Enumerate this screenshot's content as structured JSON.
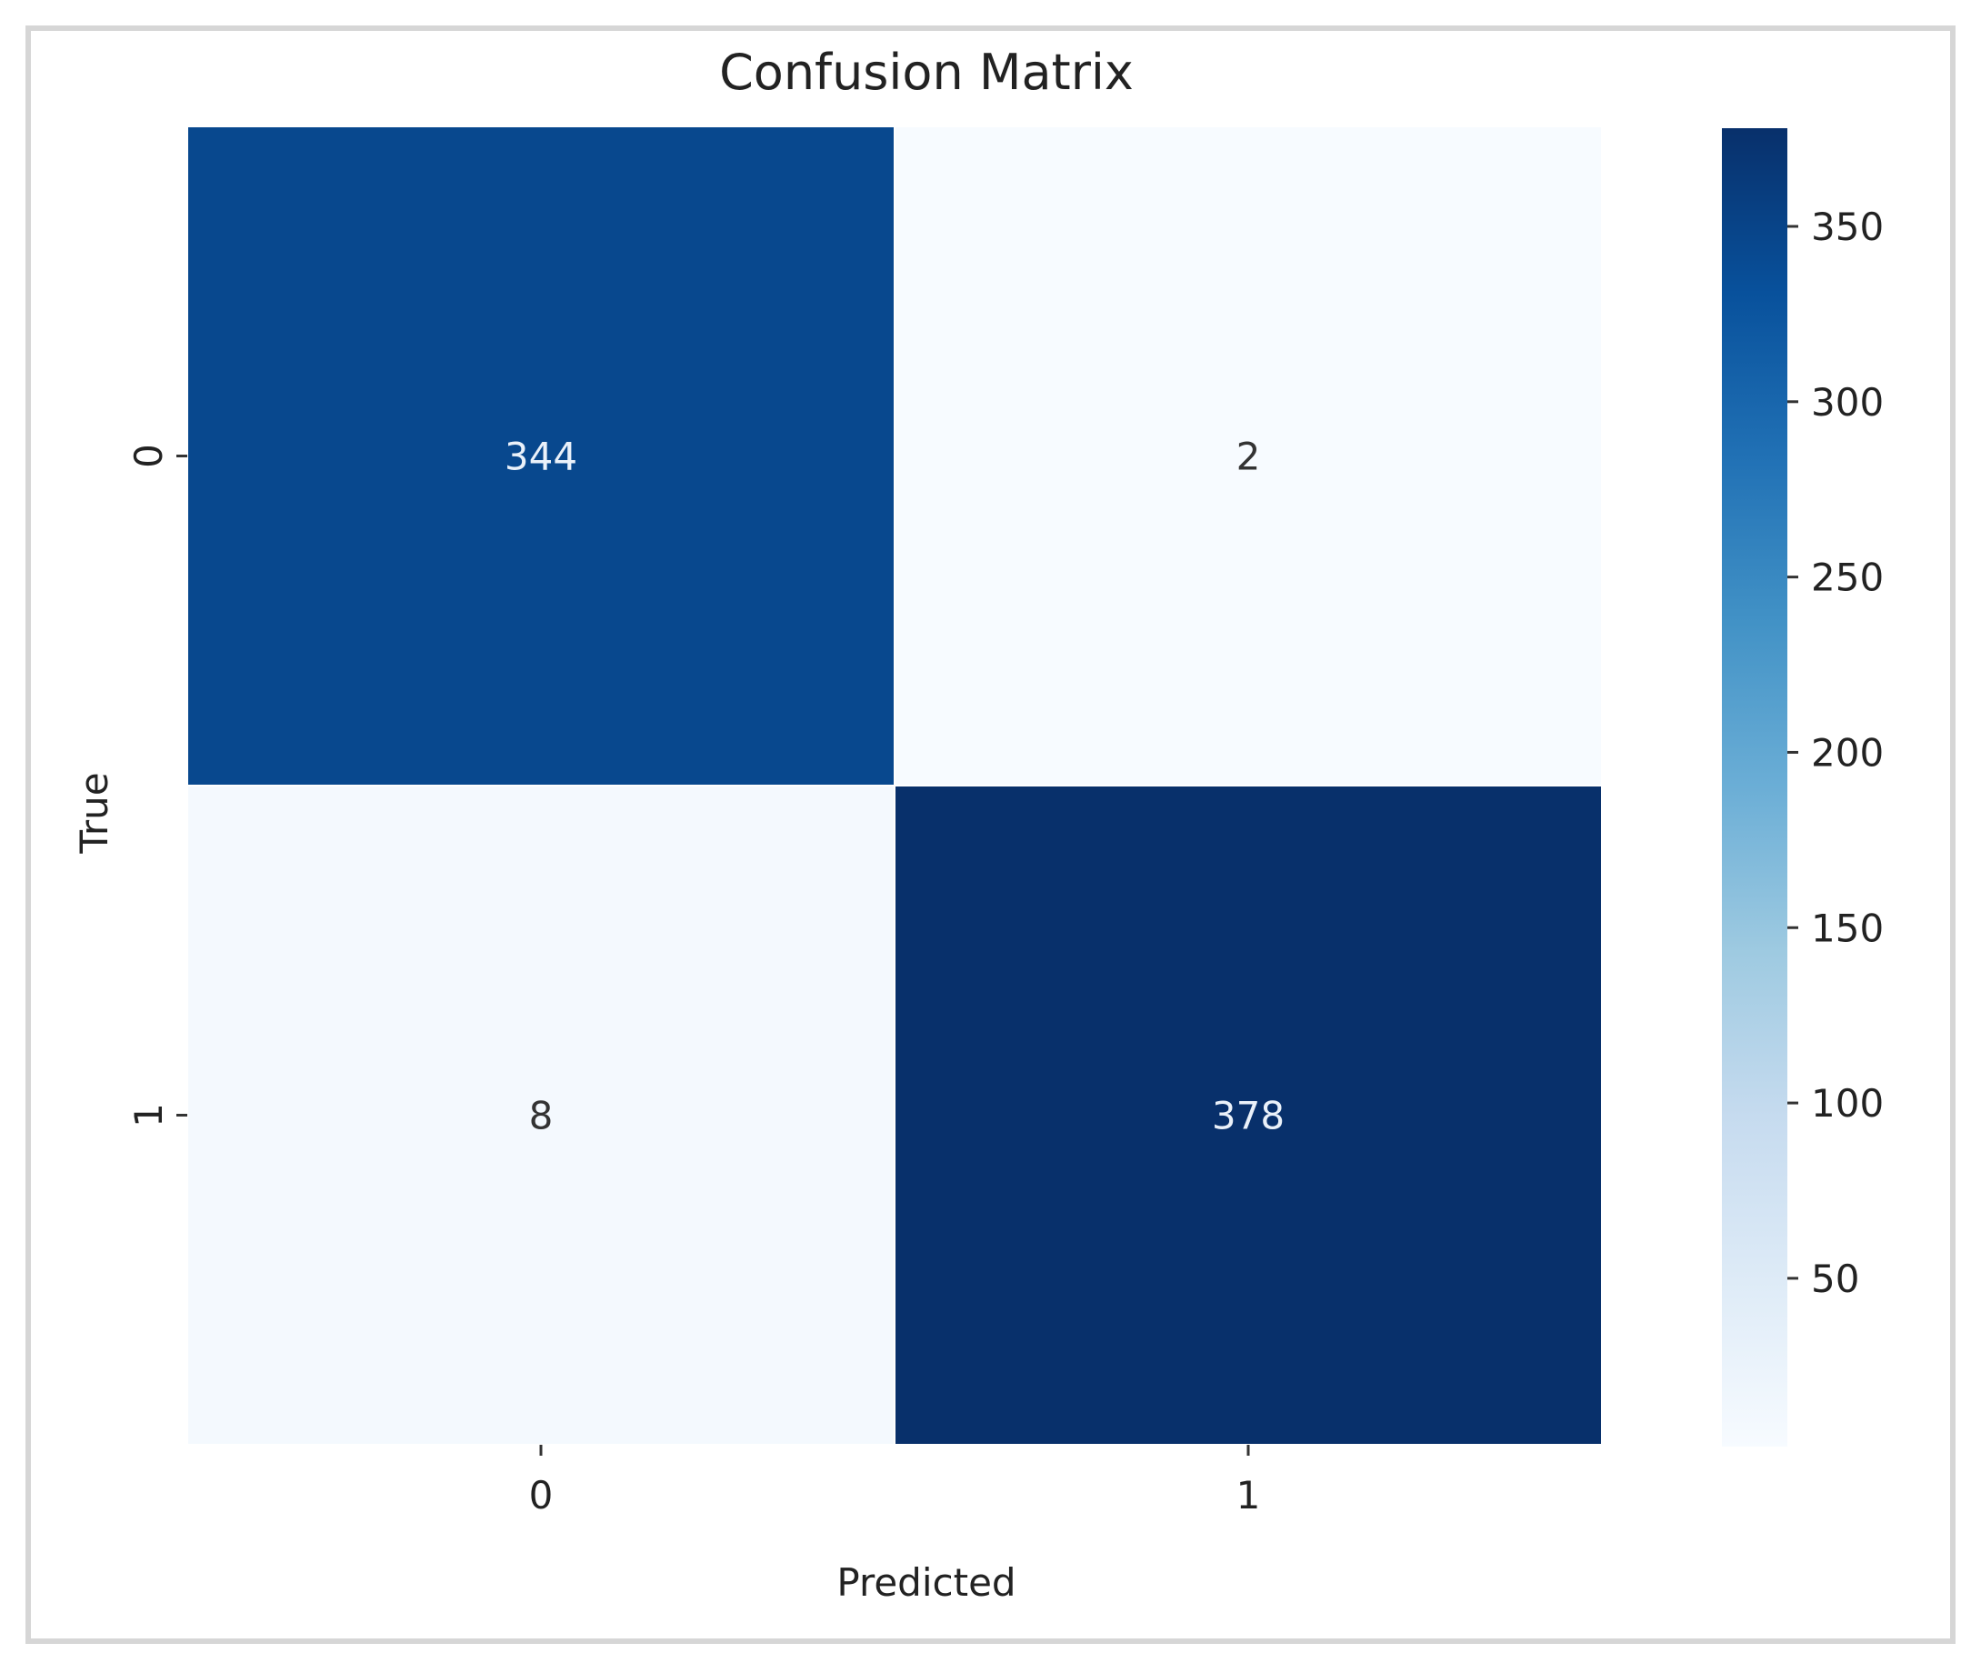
{
  "chart_data": {
    "type": "heatmap",
    "title": "Confusion Matrix",
    "xlabel": "Predicted",
    "ylabel": "True",
    "x_categories": [
      "0",
      "1"
    ],
    "y_categories": [
      "0",
      "1"
    ],
    "values": [
      [
        344,
        2
      ],
      [
        8,
        378
      ]
    ],
    "colormap": "Blues",
    "colorbar": {
      "min": 2,
      "max": 378,
      "ticks": [
        50,
        100,
        150,
        200,
        250,
        300,
        350
      ],
      "tick_labels": [
        "50",
        "100",
        "150",
        "200",
        "250",
        "300",
        "350"
      ]
    },
    "cell_text_colors": {
      "dark": "#eaf1fa",
      "light": "#333333"
    }
  }
}
